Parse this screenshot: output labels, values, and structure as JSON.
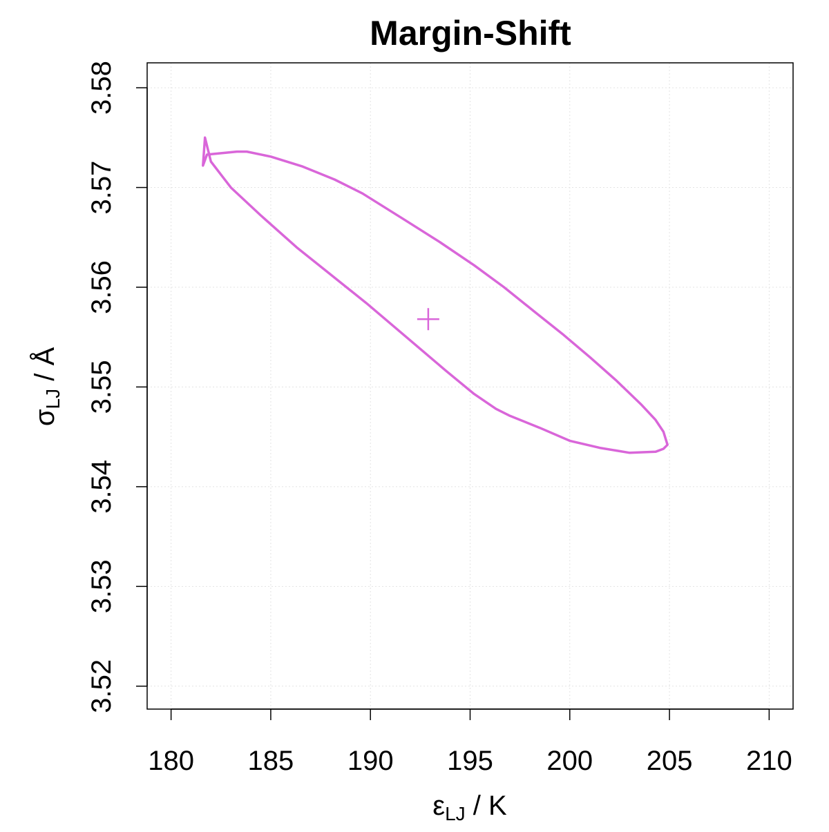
{
  "chart_data": {
    "type": "line",
    "title": "Margin-Shift",
    "xlabel": {
      "symbol": "ε",
      "subscript": "LJ",
      "unit": " / K"
    },
    "ylabel": {
      "symbol": "σ",
      "subscript": "LJ",
      "unit": " / Å"
    },
    "xlim": [
      178.8,
      211.2
    ],
    "ylim": [
      3.5177,
      3.5825
    ],
    "xticks": [
      180,
      185,
      190,
      195,
      200,
      205,
      210
    ],
    "xtick_labels": [
      "180",
      "185",
      "190",
      "195",
      "200",
      "205",
      "210"
    ],
    "yticks": [
      3.52,
      3.53,
      3.54,
      3.55,
      3.56,
      3.57,
      3.58
    ],
    "ytick_labels": [
      "3.52",
      "3.53",
      "3.54",
      "3.55",
      "3.56",
      "3.57",
      "3.58"
    ],
    "grid": true,
    "series": [
      {
        "color": "#d966d9",
        "kind": "contour",
        "points": [
          [
            181.7,
            3.575
          ],
          [
            182.0,
            3.5726
          ],
          [
            183.0,
            3.57
          ],
          [
            184.5,
            3.5672
          ],
          [
            186.3,
            3.564
          ],
          [
            187.8,
            3.5616
          ],
          [
            189.8,
            3.5584
          ],
          [
            191.8,
            3.555
          ],
          [
            193.8,
            3.5516
          ],
          [
            195.2,
            3.5493
          ],
          [
            196.3,
            3.5478
          ],
          [
            197.0,
            3.5471
          ],
          [
            198.5,
            3.5459
          ],
          [
            200.0,
            3.5446
          ],
          [
            201.5,
            3.5439
          ],
          [
            203.0,
            3.5434
          ],
          [
            204.3,
            3.5435
          ],
          [
            204.7,
            3.5438
          ],
          [
            204.9,
            3.5442
          ],
          [
            204.7,
            3.5455
          ],
          [
            204.3,
            3.5467
          ],
          [
            203.6,
            3.5482
          ],
          [
            202.3,
            3.5507
          ],
          [
            201.0,
            3.553
          ],
          [
            199.7,
            3.5552
          ],
          [
            198.2,
            3.5576
          ],
          [
            196.7,
            3.56
          ],
          [
            195.2,
            3.5622
          ],
          [
            193.5,
            3.5645
          ],
          [
            191.6,
            3.5669
          ],
          [
            189.6,
            3.5694
          ],
          [
            188.2,
            3.5708
          ],
          [
            186.6,
            3.5721
          ],
          [
            185.0,
            3.5731
          ],
          [
            183.8,
            3.5736
          ],
          [
            183.3,
            3.5736
          ],
          [
            181.8,
            3.5733
          ],
          [
            181.6,
            3.5722
          ],
          [
            181.7,
            3.575
          ]
        ]
      },
      {
        "color": "#d966d9",
        "kind": "point",
        "marker": "plus",
        "points": [
          [
            192.9,
            3.5568
          ]
        ]
      }
    ]
  }
}
